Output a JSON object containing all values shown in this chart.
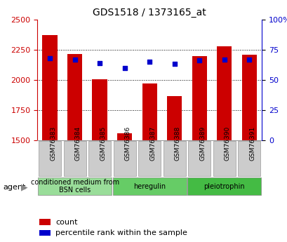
{
  "title": "GDS1518 / 1373165_at",
  "categories": [
    "GSM76383",
    "GSM76384",
    "GSM76385",
    "GSM76386",
    "GSM76387",
    "GSM76388",
    "GSM76389",
    "GSM76390",
    "GSM76391"
  ],
  "counts": [
    2370,
    2215,
    2005,
    1560,
    1970,
    1865,
    2195,
    2275,
    2205
  ],
  "percentiles": [
    68,
    67,
    64,
    60,
    65,
    63,
    66,
    67,
    67
  ],
  "ylim_left": [
    1500,
    2500
  ],
  "ylim_right": [
    0,
    100
  ],
  "yticks_left": [
    1500,
    1750,
    2000,
    2250,
    2500
  ],
  "yticks_right": [
    0,
    25,
    50,
    75,
    100
  ],
  "bar_color": "#cc0000",
  "dot_color": "#0000cc",
  "agent_groups": [
    {
      "label": "conditioned medium from\nBSN cells",
      "indices": [
        0,
        1,
        2
      ],
      "color": "#99dd99"
    },
    {
      "label": "heregulin",
      "indices": [
        3,
        4,
        5
      ],
      "color": "#66cc66"
    },
    {
      "label": "pleiotrophin",
      "indices": [
        6,
        7,
        8
      ],
      "color": "#44bb44"
    }
  ],
  "legend_count_label": "count",
  "legend_pct_label": "percentile rank within the sample",
  "agent_label": "agent",
  "bg_color": "#ffffff",
  "plot_bg_color": "#ffffff",
  "tick_area_color": "#cccccc",
  "title_color": "#000000",
  "left_axis_color": "#cc0000",
  "right_axis_color": "#0000cc"
}
